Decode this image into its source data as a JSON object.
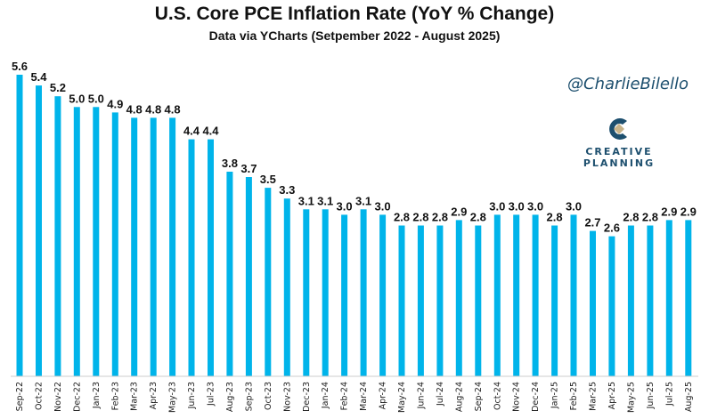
{
  "chart_data": {
    "type": "bar",
    "title": "U.S. Core PCE Inflation Rate (YoY % Change)",
    "subtitle": "Data via YCharts (Setpember 2022 - August 2025)",
    "xlabel": "",
    "ylabel": "",
    "ylim": [
      0,
      5.6
    ],
    "grid": false,
    "legend": "none",
    "categories": [
      "Sep-22",
      "Oct-22",
      "Nov-22",
      "Dec-22",
      "Jan-23",
      "Feb-23",
      "Mar-23",
      "Apr-23",
      "May-23",
      "Jun-23",
      "Jul-23",
      "Aug-23",
      "Sep-23",
      "Oct-23",
      "Nov-23",
      "Dec-23",
      "Jan-24",
      "Feb-24",
      "Mar-24",
      "Apr-24",
      "May-24",
      "Jun-24",
      "Jul-24",
      "Aug-24",
      "Sep-24",
      "Oct-24",
      "Nov-24",
      "Dec-24",
      "Jan-25",
      "Feb-25",
      "Mar-25",
      "Apr-25",
      "May-25",
      "Jun-25",
      "Jul-25",
      "Aug-25"
    ],
    "values": [
      5.6,
      5.4,
      5.2,
      5.0,
      5.0,
      4.9,
      4.8,
      4.8,
      4.8,
      4.4,
      4.4,
      3.8,
      3.7,
      3.5,
      3.3,
      3.1,
      3.1,
      3.0,
      3.1,
      3.0,
      2.8,
      2.8,
      2.8,
      2.9,
      2.8,
      3.0,
      3.0,
      3.0,
      2.8,
      3.0,
      2.7,
      2.6,
      2.8,
      2.8,
      2.9,
      2.9
    ],
    "data_labels": [
      "5.6",
      "5.4",
      "5.2",
      "5.0",
      "5.0",
      "4.9",
      "4.8",
      "4.8",
      "4.8",
      "4.4",
      "4.4",
      "3.8",
      "3.7",
      "3.5",
      "3.3",
      "3.1",
      "3.1",
      "3.0",
      "3.1",
      "3.0",
      "2.8",
      "2.8",
      "2.8",
      "2.9",
      "2.8",
      "3.0",
      "3.0",
      "3.0",
      "2.8",
      "3.0",
      "2.7",
      "2.6",
      "2.8",
      "2.8",
      "2.9",
      "2.9"
    ],
    "bar_color": "#00b4ea"
  },
  "branding": {
    "handle": "@CharlieBilello",
    "logo_line1": "CREATIVE",
    "logo_line2": "PLANNING",
    "logo_color": "#1d4f6e",
    "logo_accent": "#c8b48a"
  }
}
